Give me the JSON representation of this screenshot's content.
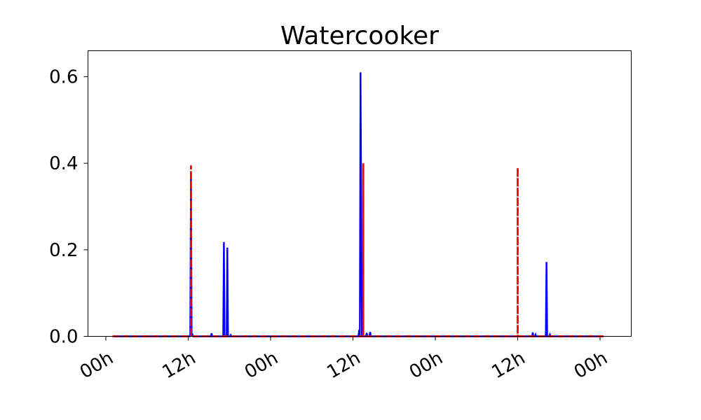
{
  "chart_data": {
    "type": "line",
    "title": "Watercooker",
    "xlabel": "",
    "ylabel": "",
    "x_unit": "hours",
    "xlim": [
      -1,
      61
    ],
    "ylim": [
      0,
      0.66
    ],
    "grid": false,
    "legend": "none",
    "x_ticks": [
      {
        "value": 0,
        "label": "00h"
      },
      {
        "value": 12,
        "label": "12h"
      },
      {
        "value": 24,
        "label": "00h"
      },
      {
        "value": 36,
        "label": "12h"
      },
      {
        "value": 48,
        "label": "00h"
      },
      {
        "value": 60,
        "label": "12h"
      },
      {
        "value": 72,
        "label": "00h"
      }
    ],
    "y_ticks": [
      {
        "value": 0.0,
        "label": "0.0"
      },
      {
        "value": 0.2,
        "label": "0.2"
      },
      {
        "value": 0.4,
        "label": "0.4"
      },
      {
        "value": 0.6,
        "label": "0.6"
      }
    ],
    "series": [
      {
        "color": "#0000ff",
        "style": "solid",
        "x": [
          1.0,
          12.2,
          12.3,
          12.4,
          12.5,
          12.6,
          12.7,
          13.2,
          15.3,
          15.4,
          15.5,
          17.1,
          17.2,
          17.3,
          17.6,
          17.7,
          17.8,
          18.1,
          18.2,
          18.3,
          36.8,
          36.9,
          37.0,
          37.1,
          37.2,
          37.3,
          37.4,
          37.9,
          38.0,
          38.1,
          38.4,
          38.5,
          38.6,
          62.1,
          62.2,
          62.3,
          62.5,
          62.6,
          62.7,
          64.1,
          64.2,
          64.3,
          64.4,
          64.6,
          64.7,
          64.8,
          72.5
        ],
        "y": [
          0,
          0,
          0.005,
          0.38,
          0.005,
          0.005,
          0,
          0,
          0,
          0.007,
          0,
          0,
          0.218,
          0,
          0,
          0.205,
          0,
          0,
          0.003,
          0,
          0,
          0.015,
          0,
          0.61,
          0.31,
          0,
          0,
          0,
          0.008,
          0,
          0,
          0.01,
          0,
          0,
          0.009,
          0,
          0,
          0.004,
          0,
          0,
          0.172,
          0,
          0,
          0,
          0.004,
          0,
          0
        ]
      },
      {
        "color": "#ff0000",
        "style": "dashed",
        "x": [
          1.0,
          12.4,
          12.4,
          12.4,
          37.5,
          37.5,
          37.5,
          60.0,
          60.0,
          60.0,
          73.0
        ],
        "y": [
          0,
          0,
          0.395,
          0,
          0,
          0.4,
          0,
          0,
          0.39,
          0,
          0
        ]
      }
    ]
  }
}
